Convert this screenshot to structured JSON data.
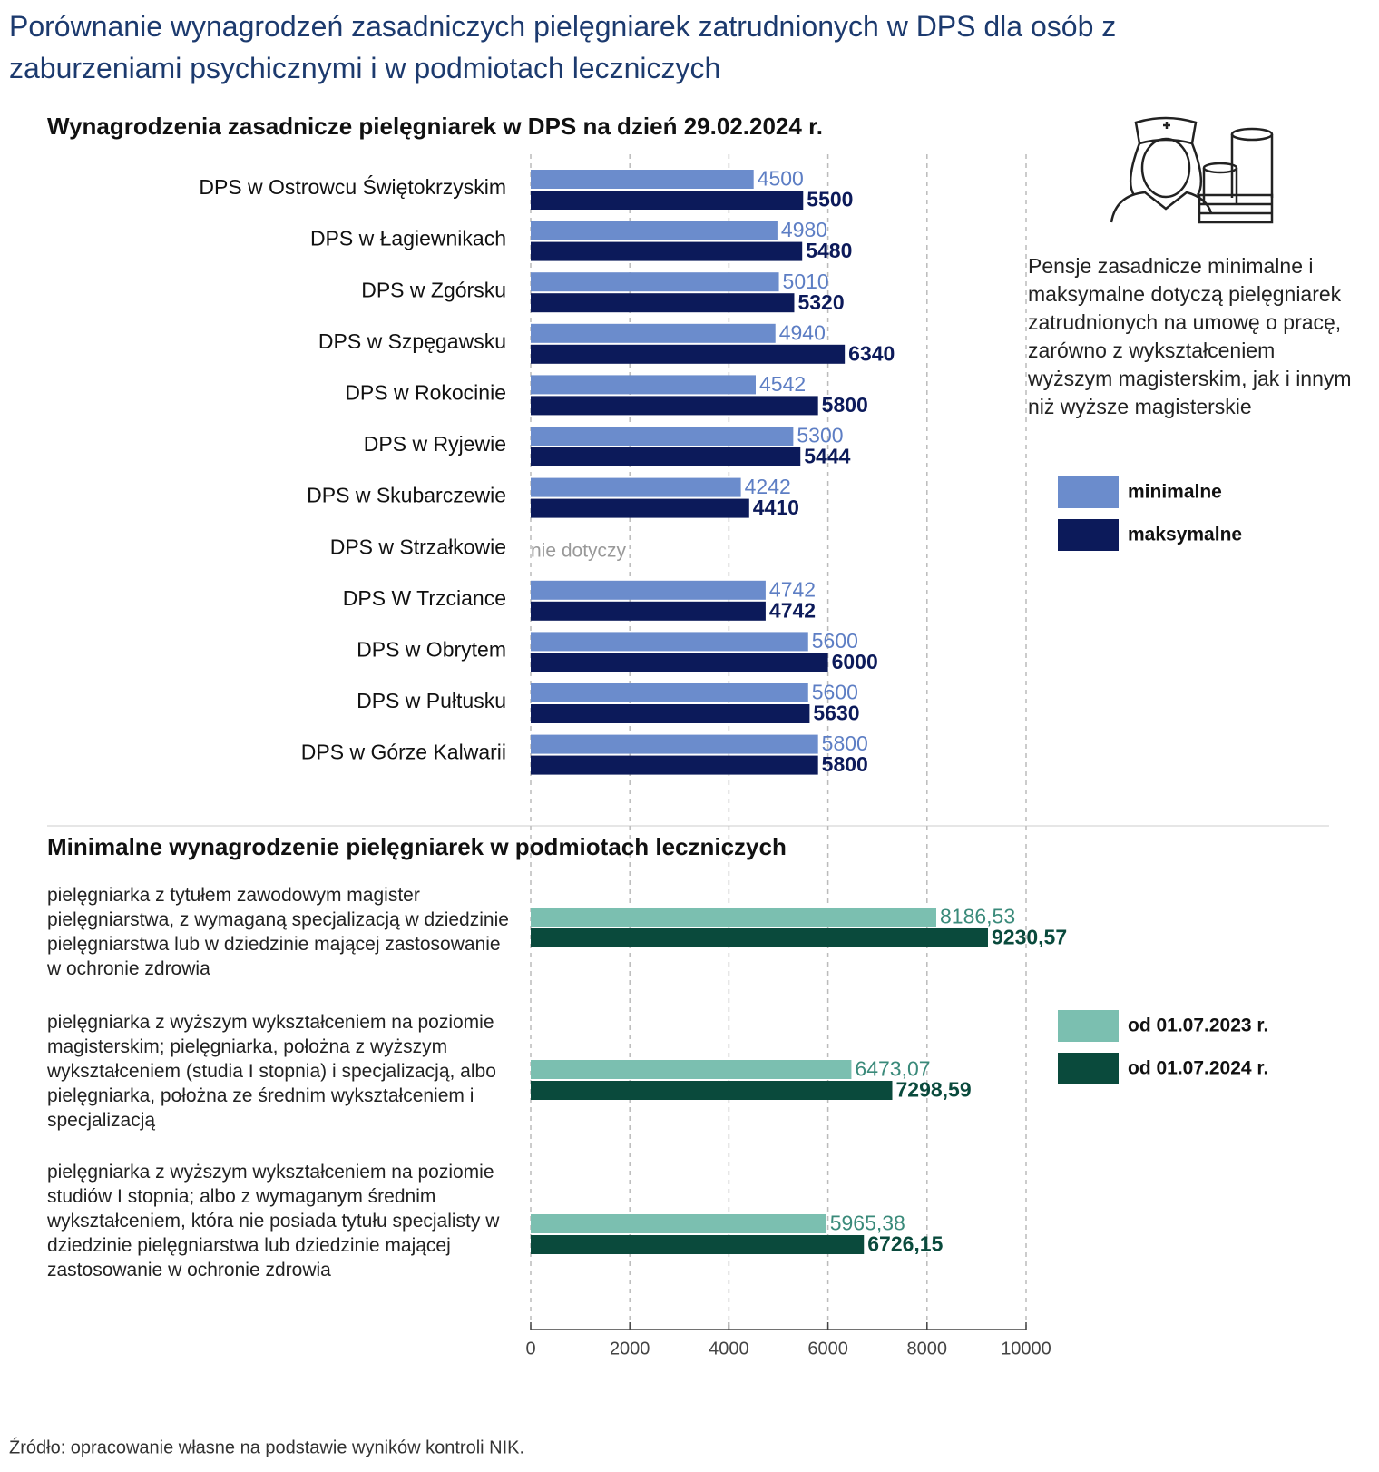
{
  "title": "Porównanie wynagrodzeń zasadniczych pielęgniarek zatrudnionych w DPS dla osób z zaburzeniami psychicznymi i w podmiotach leczniczych",
  "note": "Pensje zasadnicze minimalne i maksymalne dotyczą pielęgniarek zatrudnionych na umowę o pracę, zarówno z wykształceniem wyższym magisterskim, jak i innym niż wyższe magisterskie",
  "source": "Źródło: opracowanie własne na podstawie wyników kontroli NIK.",
  "chart_data": [
    {
      "type": "hbar",
      "title": "Wynagrodzenia zasadnicze pielęgniarek w DPS na dzień 29.02.2024 r.",
      "categories": [
        "DPS w Ostrowcu Świętokrzyskim",
        "DPS w Łagiewnikach",
        "DPS w Zgórsku",
        "DPS w Szpęgawsku",
        "DPS w Rokocinie",
        "DPS w Ryjewie",
        "DPS w Skubarczewie",
        "DPS w Strzałkowie",
        "DPS W Trzciance",
        "DPS w Obrytem",
        "DPS w Pułtusku",
        "DPS w Górze Kalwarii"
      ],
      "series": [
        {
          "name": "minimalne",
          "color": "#6b8ccc",
          "values": [
            4500,
            4980,
            5010,
            4940,
            4542,
            5300,
            4242,
            null,
            4742,
            5600,
            5600,
            5800
          ]
        },
        {
          "name": "maksymalne",
          "color": "#0c1a5a",
          "values": [
            5500,
            5480,
            5320,
            6340,
            5800,
            5444,
            4410,
            null,
            4742,
            6000,
            5630,
            5800
          ]
        }
      ],
      "null_label": "nie dotyczy",
      "xlim": [
        0,
        10000
      ],
      "grid": true,
      "legend": "right"
    },
    {
      "type": "hbar",
      "title": "Minimalne wynagrodzenie pielęgniarek w podmiotach leczniczych",
      "categories": [
        "pielęgniarka z tytułem zawodowym magister pielęgniarstwa, z wymaganą specjalizacją w dziedzinie pielęgniarstwa lub w dziedzinie mającej zastosowanie w ochronie zdrowia",
        "pielęgniarka z wyższym wykształceniem na poziomie magisterskim; pielęgniarka, położna z wyższym wykształceniem (studia I stopnia) i specjalizacją, albo pielęgniarka, położna ze średnim wykształceniem i specjalizacją",
        "pielęgniarka z wyższym wykształceniem na poziomie studiów I stopnia; albo z wymaganym średnim wykształceniem, która nie posiada tytułu specjalisty w dziedzinie pielęgniarstwa lub dziedzinie mającej zastosowanie w ochronie zdrowia"
      ],
      "series": [
        {
          "name": "od 01.07.2023 r.",
          "color": "#7bbfb0",
          "values": [
            8186.53,
            6473.07,
            5965.38
          ],
          "value_labels": [
            "8186,53",
            "6473,07",
            "5965,38"
          ]
        },
        {
          "name": "od 01.07.2024 r.",
          "color": "#0a4a3c",
          "values": [
            9230.57,
            7298.59,
            6726.15
          ],
          "value_labels": [
            "9230,57",
            "7298,59",
            "6726,15"
          ]
        }
      ],
      "xlim": [
        0,
        10000
      ],
      "xticks": [
        0,
        2000,
        4000,
        6000,
        8000,
        10000
      ],
      "grid": true,
      "legend": "right"
    }
  ]
}
